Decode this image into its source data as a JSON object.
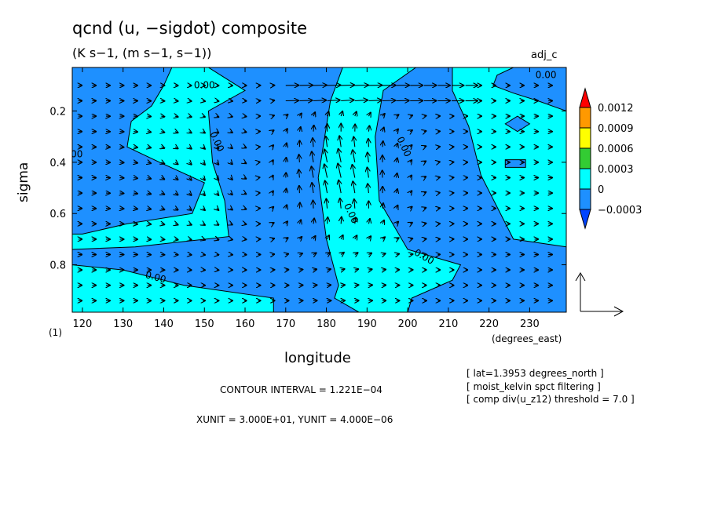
{
  "header": {
    "title": "qcnd (u, −sigdot) composite",
    "subtitle": "(K s−1, (m s−1, s−1))",
    "tag": "adj_c"
  },
  "annotations": {
    "contour_interval": "CONTOUR INTERVAL = 1.221E−04",
    "units": "XUNIT = 3.000E+01, YUNIT = 4.000E−06",
    "info": [
      "[ lat=1.3953 degrees_north ]",
      "[ moist_kelvin spct filtering ]",
      "[ comp div(u_z12) threshold = 7.0 ]"
    ],
    "corner_label": "(1)",
    "contour_label": "0.00"
  },
  "colorbar": {
    "labels": [
      "0.0012",
      "0.0009",
      "0.0006",
      "0.0003",
      "0",
      "−0.0003"
    ],
    "colors": [
      "#ff0000",
      "#ff9900",
      "#ffff00",
      "#33cc33",
      "#00ffff",
      "#1e90ff",
      "#0044ff"
    ]
  },
  "chart_data": {
    "type": "heatmap",
    "title": "qcnd (u, −sigdot) composite",
    "subtitle": "(K s−1, (m s−1, s−1))",
    "xlabel": "longitude",
    "x_units": "(degrees_east)",
    "ylabel": "sigma",
    "x_ticks": [
      120,
      130,
      140,
      150,
      160,
      170,
      180,
      190,
      200,
      210,
      220,
      230
    ],
    "y_ticks": [
      0.2,
      0.4,
      0.6,
      0.8
    ],
    "xlim": [
      117.5,
      239
    ],
    "ylim": [
      0.03,
      0.985
    ],
    "y_inverted": true,
    "levels": [
      -0.0003,
      0,
      0.0003,
      0.0006,
      0.0009,
      0.0012
    ],
    "field_colors": {
      "negative": "#1e90ff",
      "positive": "#00ffff",
      "background": "#00ffff"
    },
    "negative_regions": [
      [
        [
          126,
          0.03
        ],
        [
          142,
          0.03
        ],
        [
          140,
          0.1
        ],
        [
          137,
          0.18
        ],
        [
          132,
          0.24
        ],
        [
          131,
          0.34
        ],
        [
          139,
          0.4
        ],
        [
          150,
          0.48
        ],
        [
          147,
          0.6
        ],
        [
          131,
          0.64
        ],
        [
          120,
          0.68
        ],
        [
          117.5,
          0.68
        ],
        [
          117.5,
          0.03
        ]
      ],
      [
        [
          151,
          0.03
        ],
        [
          184,
          0.03
        ],
        [
          181,
          0.16
        ],
        [
          178,
          0.46
        ],
        [
          180,
          0.7
        ],
        [
          183,
          0.88
        ],
        [
          182,
          0.93
        ],
        [
          188,
          0.985
        ],
        [
          167,
          0.985
        ],
        [
          167,
          0.93
        ],
        [
          145,
          0.88
        ],
        [
          130,
          0.82
        ],
        [
          117.5,
          0.8
        ],
        [
          117.5,
          0.74
        ],
        [
          133,
          0.73
        ],
        [
          156,
          0.69
        ],
        [
          155,
          0.55
        ],
        [
          152,
          0.4
        ],
        [
          151,
          0.2
        ],
        [
          160,
          0.12
        ]
      ],
      [
        [
          202,
          0.03
        ],
        [
          211,
          0.03
        ],
        [
          211,
          0.12
        ],
        [
          215,
          0.26
        ],
        [
          218,
          0.45
        ],
        [
          226,
          0.7
        ],
        [
          239,
          0.73
        ],
        [
          239,
          0.985
        ],
        [
          200,
          0.985
        ],
        [
          201,
          0.93
        ],
        [
          211,
          0.86
        ],
        [
          213,
          0.8
        ],
        [
          200,
          0.74
        ],
        [
          193,
          0.55
        ],
        [
          192,
          0.3
        ],
        [
          194,
          0.12
        ]
      ],
      [
        [
          226,
          0.03
        ],
        [
          239,
          0.03
        ],
        [
          239,
          0.2
        ],
        [
          232,
          0.16
        ],
        [
          226,
          0.13
        ],
        [
          221,
          0.1
        ],
        [
          222,
          0.06
        ]
      ],
      [
        [
          224,
          0.25
        ],
        [
          227,
          0.22
        ],
        [
          230,
          0.25
        ],
        [
          227,
          0.28
        ]
      ],
      [
        [
          224,
          0.39
        ],
        [
          229,
          0.39
        ],
        [
          229,
          0.42
        ],
        [
          224,
          0.42
        ]
      ]
    ],
    "zero_contour_labels": [
      [
        150,
        0.1
      ],
      [
        117.5,
        0.37
      ],
      [
        153,
        0.32
      ],
      [
        186,
        0.6
      ],
      [
        199,
        0.34
      ],
      [
        204,
        0.77
      ],
      [
        138,
        0.85
      ],
      [
        234,
        0.06
      ]
    ],
    "vectors": {
      "components": [
        "u",
        "−sigdot"
      ],
      "reference": {
        "xunit": 30.0,
        "yunit": 4e-06
      },
      "rows_sigma": [
        0.1,
        0.16,
        0.22,
        0.28,
        0.34,
        0.4,
        0.46,
        0.52,
        0.58,
        0.64,
        0.7,
        0.76,
        0.82,
        0.88,
        0.94
      ],
      "ascent_center_longitude": 183,
      "description": "weak westerlies west of 170E and east of 210E; upward/westward flow 175E-205E in mid troposphere"
    }
  }
}
